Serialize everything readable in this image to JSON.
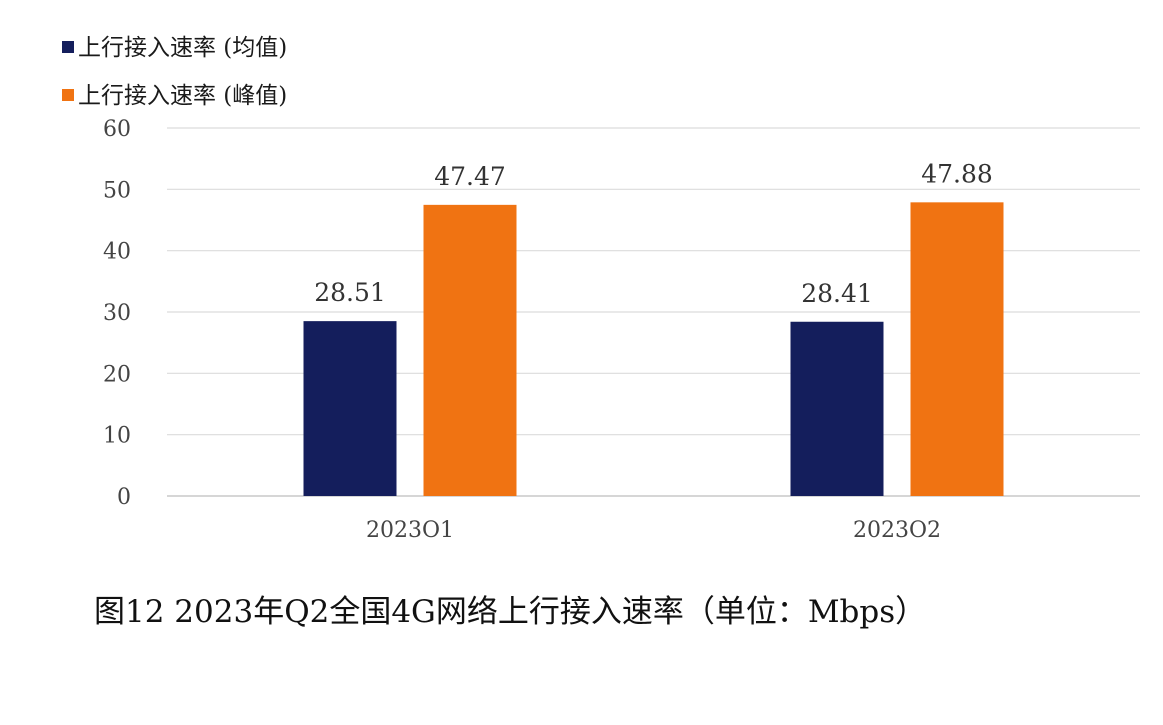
{
  "chart_data": {
    "type": "bar",
    "categories": [
      "2023O1",
      "2023O2"
    ],
    "series": [
      {
        "name": "上行接入速率 (均值)",
        "values": [
          28.51,
          28.41
        ],
        "color": "#141e5c"
      },
      {
        "name": "上行接入速率 (峰值)",
        "values": [
          47.47,
          47.88
        ],
        "color": "#f07312"
      }
    ],
    "data_labels": [
      [
        "28.51",
        "28.41"
      ],
      [
        "47.47",
        "47.88"
      ]
    ],
    "ylim": [
      0,
      60
    ],
    "yticks": [
      0,
      10,
      20,
      30,
      40,
      50,
      60
    ],
    "grid": true,
    "legend": "top-left",
    "xlabel": "",
    "ylabel": ""
  },
  "caption": "图12 2023年Q2全国4G网络上行接入速率（单位：Mbps）"
}
